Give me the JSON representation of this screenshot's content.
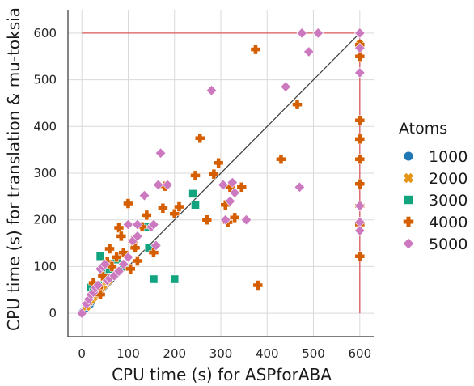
{
  "chart_data": {
    "type": "scatter",
    "xlabel": "CPU time (s) for ASPforABA",
    "ylabel": "CPU time (s) for translation & mu-toksia",
    "xlim": [
      -30,
      630
    ],
    "ylim": [
      -50,
      650
    ],
    "xticks": [
      0,
      100,
      200,
      300,
      400,
      500,
      600
    ],
    "yticks": [
      0,
      100,
      200,
      300,
      400,
      500,
      600
    ],
    "grid": true,
    "reference_lines": {
      "diagonal_color": "#3a3a3a",
      "timeout_color": "#d9585a",
      "timeout_value": 600
    },
    "legend": {
      "title": "Atoms",
      "placement": "right"
    },
    "series": [
      {
        "name": "1000",
        "marker": "circle",
        "color": "#1f77b4",
        "points": [
          [
            2,
            3
          ],
          [
            5,
            6
          ],
          [
            8,
            10
          ],
          [
            10,
            12
          ],
          [
            12,
            15
          ],
          [
            15,
            18
          ],
          [
            18,
            20
          ],
          [
            20,
            25
          ]
        ]
      },
      {
        "name": "2000",
        "marker": "x",
        "color": "#e69414",
        "points": [
          [
            10,
            15
          ],
          [
            15,
            25
          ],
          [
            20,
            30
          ],
          [
            25,
            35
          ],
          [
            30,
            42
          ],
          [
            35,
            48
          ],
          [
            40,
            55
          ],
          [
            45,
            60
          ],
          [
            55,
            70
          ],
          [
            600,
            575
          ]
        ]
      },
      {
        "name": "3000",
        "marker": "square",
        "color": "#12a37f",
        "points": [
          [
            20,
            55
          ],
          [
            25,
            45
          ],
          [
            35,
            60
          ],
          [
            40,
            122
          ],
          [
            50,
            88
          ],
          [
            60,
            95
          ],
          [
            75,
            115
          ],
          [
            90,
            100
          ],
          [
            140,
            185
          ],
          [
            145,
            140
          ],
          [
            155,
            73
          ],
          [
            200,
            73
          ],
          [
            240,
            256
          ],
          [
            245,
            232
          ]
        ]
      },
      {
        "name": "4000",
        "marker": "plus",
        "color": "#d55e00",
        "points": [
          [
            25,
            65
          ],
          [
            30,
            50
          ],
          [
            35,
            55
          ],
          [
            40,
            40
          ],
          [
            45,
            80
          ],
          [
            55,
            110
          ],
          [
            60,
            138
          ],
          [
            65,
            100
          ],
          [
            75,
            120
          ],
          [
            80,
            183
          ],
          [
            85,
            165
          ],
          [
            90,
            130
          ],
          [
            100,
            235
          ],
          [
            105,
            95
          ],
          [
            110,
            155
          ],
          [
            115,
            140
          ],
          [
            120,
            112
          ],
          [
            130,
            185
          ],
          [
            140,
            210
          ],
          [
            155,
            130
          ],
          [
            175,
            225
          ],
          [
            180,
            272
          ],
          [
            200,
            213
          ],
          [
            210,
            228
          ],
          [
            245,
            295
          ],
          [
            255,
            375
          ],
          [
            270,
            200
          ],
          [
            285,
            298
          ],
          [
            295,
            322
          ],
          [
            310,
            232
          ],
          [
            315,
            195
          ],
          [
            320,
            270
          ],
          [
            330,
            205
          ],
          [
            345,
            270
          ],
          [
            375,
            565
          ],
          [
            380,
            60
          ],
          [
            430,
            330
          ],
          [
            465,
            447
          ],
          [
            600,
            575
          ],
          [
            600,
            550
          ],
          [
            600,
            413
          ],
          [
            600,
            373
          ],
          [
            600,
            330
          ],
          [
            600,
            277
          ],
          [
            600,
            230
          ],
          [
            600,
            190
          ],
          [
            600,
            122
          ]
        ]
      },
      {
        "name": "5000",
        "marker": "diamond",
        "color": "#cc79c0",
        "points": [
          [
            0,
            0
          ],
          [
            10,
            20
          ],
          [
            15,
            30
          ],
          [
            20,
            40
          ],
          [
            25,
            45
          ],
          [
            30,
            55
          ],
          [
            35,
            60
          ],
          [
            40,
            95
          ],
          [
            45,
            100
          ],
          [
            50,
            105
          ],
          [
            55,
            70
          ],
          [
            60,
            75
          ],
          [
            70,
            80
          ],
          [
            80,
            90
          ],
          [
            90,
            105
          ],
          [
            100,
            120
          ],
          [
            100,
            190
          ],
          [
            110,
            155
          ],
          [
            120,
            190
          ],
          [
            120,
            165
          ],
          [
            135,
            252
          ],
          [
            150,
            185
          ],
          [
            155,
            190
          ],
          [
            160,
            145
          ],
          [
            165,
            275
          ],
          [
            170,
            343
          ],
          [
            185,
            275
          ],
          [
            280,
            477
          ],
          [
            305,
            275
          ],
          [
            310,
            200
          ],
          [
            320,
            240
          ],
          [
            325,
            280
          ],
          [
            330,
            258
          ],
          [
            355,
            200
          ],
          [
            440,
            485
          ],
          [
            470,
            270
          ],
          [
            475,
            600
          ],
          [
            490,
            560
          ],
          [
            510,
            600
          ],
          [
            600,
            600
          ],
          [
            600,
            568
          ],
          [
            600,
            515
          ],
          [
            600,
            230
          ],
          [
            600,
            195
          ],
          [
            600,
            177
          ]
        ]
      }
    ]
  }
}
